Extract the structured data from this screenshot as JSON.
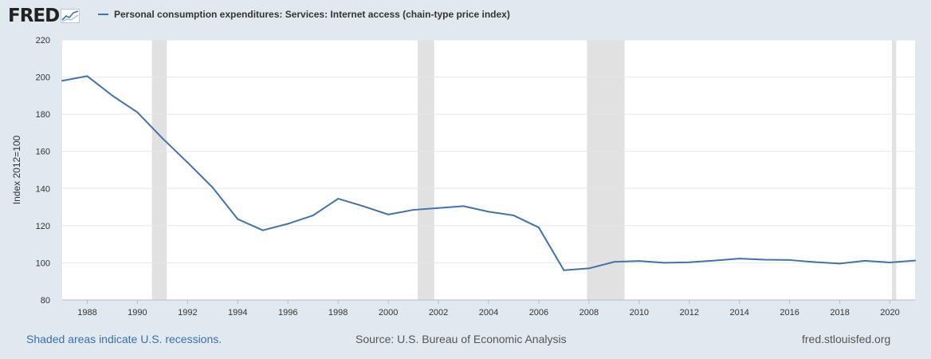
{
  "logo": {
    "text": "FRED",
    "icon": "chart-line-icon"
  },
  "colors": {
    "background": "#e1e9f0",
    "line": "#4572a7",
    "recession": "#e1e1e1",
    "plot": "#ffffff"
  },
  "footer": {
    "recessions_note": "Shaded areas indicate U.S. recessions.",
    "source": "Source: U.S. Bureau of Economic Analysis",
    "site": "fred.stlouisfed.org"
  },
  "chart_data": {
    "type": "line",
    "title": "",
    "ylabel": "Index 2012=100",
    "xlabel": "",
    "xlim": [
      1987,
      2021
    ],
    "ylim": [
      80,
      220
    ],
    "yticks": [
      80,
      100,
      120,
      140,
      160,
      180,
      200,
      220
    ],
    "xticks": [
      1988,
      1990,
      1992,
      1994,
      1996,
      1998,
      2000,
      2002,
      2004,
      2006,
      2008,
      2010,
      2012,
      2014,
      2016,
      2018,
      2020
    ],
    "grid": true,
    "legend_position": "top-left",
    "recessions": [
      [
        1990.58,
        1991.17
      ],
      [
        2001.17,
        2001.83
      ],
      [
        2007.92,
        2009.42
      ],
      [
        2020.08,
        2020.25
      ]
    ],
    "series": [
      {
        "name": "Personal consumption expenditures: Services: Internet access (chain-type price index)",
        "x": [
          1987,
          1988,
          1989,
          1990,
          1991,
          1992,
          1993,
          1994,
          1995,
          1996,
          1997,
          1998,
          1999,
          2000,
          2001,
          2002,
          2003,
          2004,
          2005,
          2006,
          2007,
          2008,
          2009,
          2010,
          2011,
          2012,
          2013,
          2014,
          2015,
          2016,
          2017,
          2018,
          2019,
          2020,
          2021
        ],
        "values": [
          198,
          200.5,
          190,
          181,
          167,
          154,
          140.5,
          123.5,
          117.5,
          121,
          125.5,
          134.5,
          130.5,
          126,
          128.5,
          129.5,
          130.5,
          127.5,
          125.5,
          119,
          96,
          97,
          100.5,
          101,
          100,
          100.3,
          101.2,
          102.3,
          101.7,
          101.5,
          100.4,
          99.6,
          101.1,
          100.2,
          101.2
        ]
      }
    ]
  }
}
